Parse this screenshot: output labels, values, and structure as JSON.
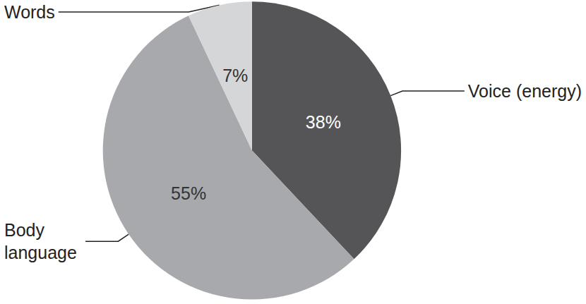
{
  "chart_data": {
    "type": "pie",
    "categories": [
      "Voice (energy)",
      "Body language",
      "Words"
    ],
    "values": [
      38,
      55,
      7
    ],
    "value_labels": [
      "38%",
      "55%",
      "7%"
    ],
    "colors": [
      "#555558",
      "#a8a9ac",
      "#d5d6d8"
    ],
    "data_labels": true
  }
}
